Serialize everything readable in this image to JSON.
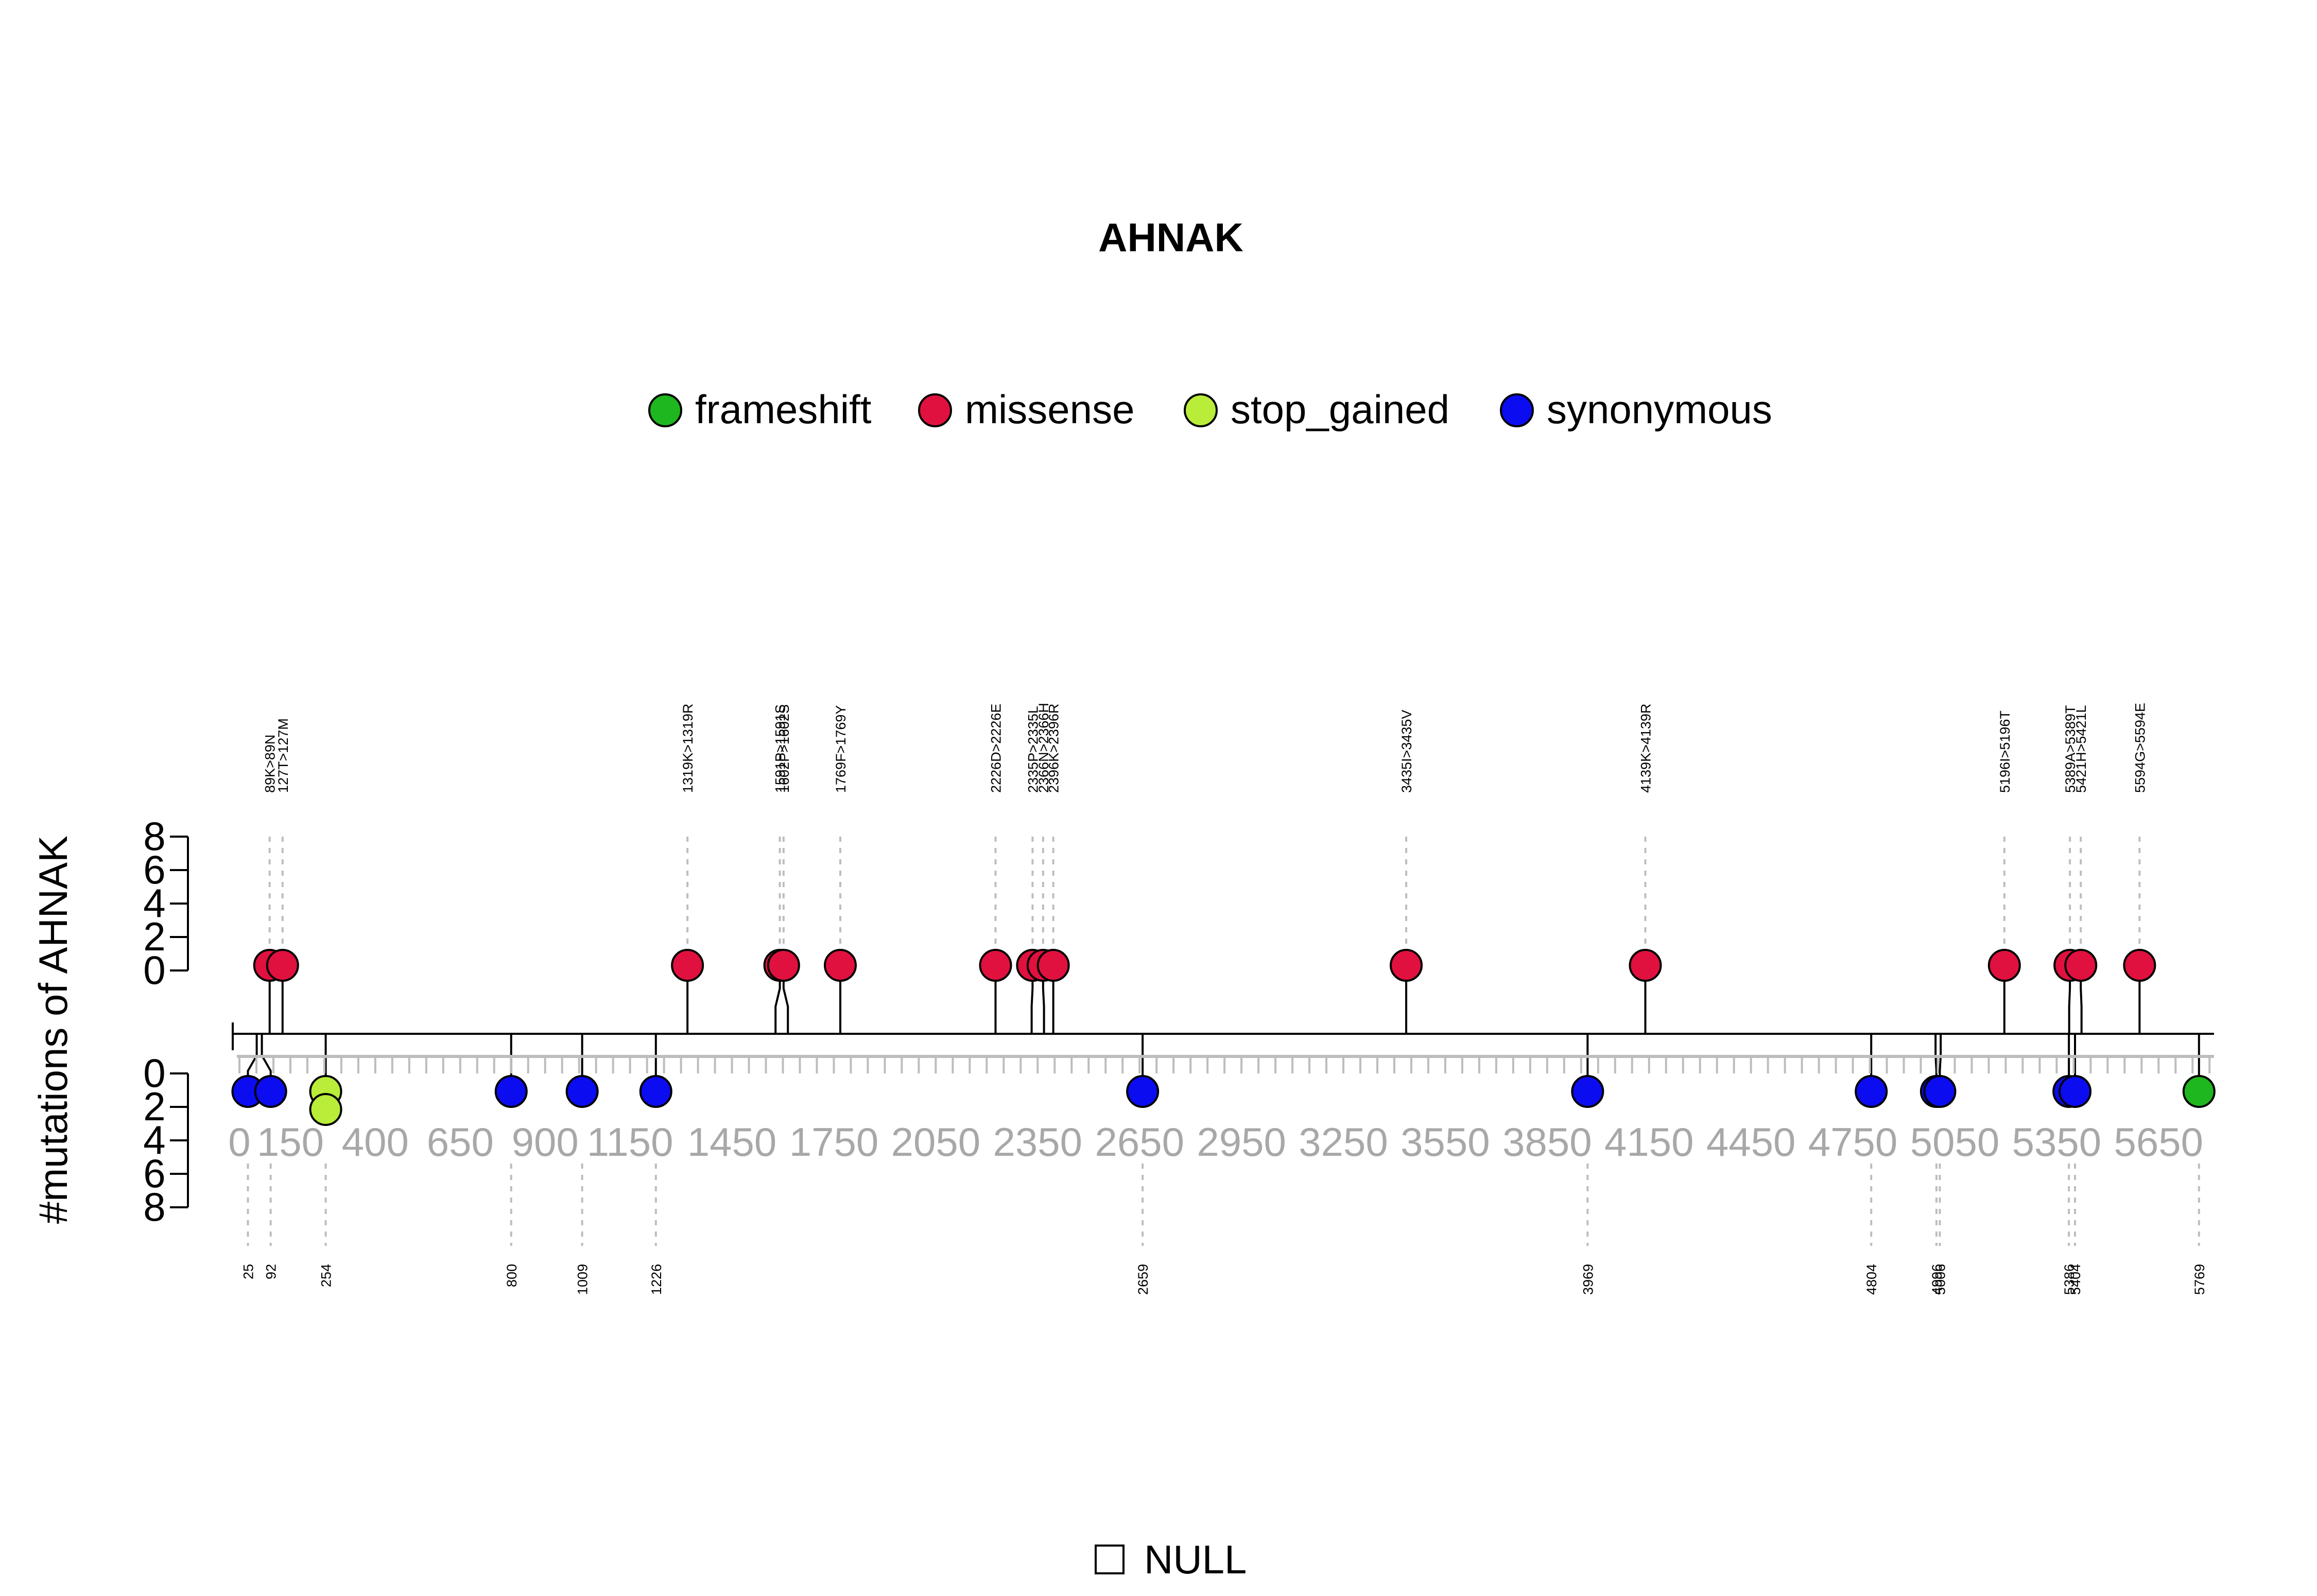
{
  "chart_data": {
    "type": "lollipop",
    "title": "AHNAK",
    "ylabel": "#mutations of AHNAK",
    "legend": {
      "placement": "top-center",
      "items": [
        {
          "label": "frameshift",
          "color": "#1fb71f"
        },
        {
          "label": "missense",
          "color": "#e0113f"
        },
        {
          "label": "stop_gained",
          "color": "#b9ed3a"
        },
        {
          "label": "synonymous",
          "color": "#0c0cf0"
        }
      ]
    },
    "domain_legend": {
      "label": "NULL"
    },
    "xlim": [
      0,
      5800
    ],
    "x_ticks": [
      0,
      150,
      400,
      650,
      900,
      1150,
      1450,
      1750,
      2050,
      2350,
      2650,
      2950,
      3250,
      3550,
      3850,
      4150,
      4450,
      4750,
      5050,
      5350,
      5650
    ],
    "x_tick_labels": [
      "0",
      "150",
      "400",
      "650",
      "900",
      "1150",
      "1450",
      "1750",
      "2050",
      "2350",
      "2650",
      "2950",
      "3250",
      "3550",
      "3850",
      "4150",
      "4450",
      "4750",
      "5050",
      "5350",
      "5650"
    ],
    "y_ticks_top": [
      "0",
      "2",
      "4",
      "6",
      "8"
    ],
    "y_ticks_bottom": [
      "0",
      "2",
      "4",
      "6",
      "8"
    ],
    "top_mutations": [
      {
        "pos": 89,
        "label": "89K>89N",
        "type": "missense",
        "count": 1
      },
      {
        "pos": 127,
        "label": "127T>127M",
        "type": "missense",
        "count": 1
      },
      {
        "pos": 1319,
        "label": "1319K>1319R",
        "type": "missense",
        "count": 1
      },
      {
        "pos": 1591,
        "label": "1591P>1591S",
        "type": "missense",
        "count": 1
      },
      {
        "pos": 1602,
        "label": "1602P>1602S",
        "type": "missense",
        "count": 1
      },
      {
        "pos": 1769,
        "label": "1769F>1769Y",
        "type": "missense",
        "count": 1
      },
      {
        "pos": 2226,
        "label": "2226D>2226E",
        "type": "missense",
        "count": 1
      },
      {
        "pos": 2335,
        "label": "2335P>2335L",
        "type": "missense",
        "count": 1
      },
      {
        "pos": 2366,
        "label": "2366N>2366H",
        "type": "missense",
        "count": 1
      },
      {
        "pos": 2396,
        "label": "2396K>2396R",
        "type": "missense",
        "count": 1
      },
      {
        "pos": 3435,
        "label": "3435I>3435V",
        "type": "missense",
        "count": 1
      },
      {
        "pos": 4139,
        "label": "4139K>4139R",
        "type": "missense",
        "count": 1
      },
      {
        "pos": 5196,
        "label": "5196I>5196T",
        "type": "missense",
        "count": 1
      },
      {
        "pos": 5389,
        "label": "5389A>5389T",
        "type": "missense",
        "count": 1
      },
      {
        "pos": 5421,
        "label": "5421H>5421L",
        "type": "missense",
        "count": 1
      },
      {
        "pos": 5594,
        "label": "5594G>5594E",
        "type": "missense",
        "count": 1
      }
    ],
    "bottom_mutations": [
      {
        "pos": 25,
        "label": "25",
        "type": "synonymous",
        "count": 1
      },
      {
        "pos": 92,
        "label": "92",
        "type": "synonymous",
        "count": 1
      },
      {
        "pos": 254,
        "label": "254",
        "type": "stop_gained",
        "count": 2
      },
      {
        "pos": 800,
        "label": "800",
        "type": "synonymous",
        "count": 1
      },
      {
        "pos": 1009,
        "label": "1009",
        "type": "synonymous",
        "count": 1
      },
      {
        "pos": 1226,
        "label": "1226",
        "type": "synonymous",
        "count": 1
      },
      {
        "pos": 2659,
        "label": "2659",
        "type": "synonymous",
        "count": 1
      },
      {
        "pos": 3969,
        "label": "3969",
        "type": "synonymous",
        "count": 1
      },
      {
        "pos": 4804,
        "label": "4804",
        "type": "synonymous",
        "count": 1
      },
      {
        "pos": 4996,
        "label": "4996",
        "type": "synonymous",
        "count": 1
      },
      {
        "pos": 5006,
        "label": "5006",
        "type": "synonymous",
        "count": 1
      },
      {
        "pos": 5386,
        "label": "5386",
        "type": "synonymous",
        "count": 1
      },
      {
        "pos": 5404,
        "label": "5404",
        "type": "synonymous",
        "count": 1
      },
      {
        "pos": 5769,
        "label": "5769",
        "type": "frameshift",
        "count": 1
      }
    ]
  }
}
